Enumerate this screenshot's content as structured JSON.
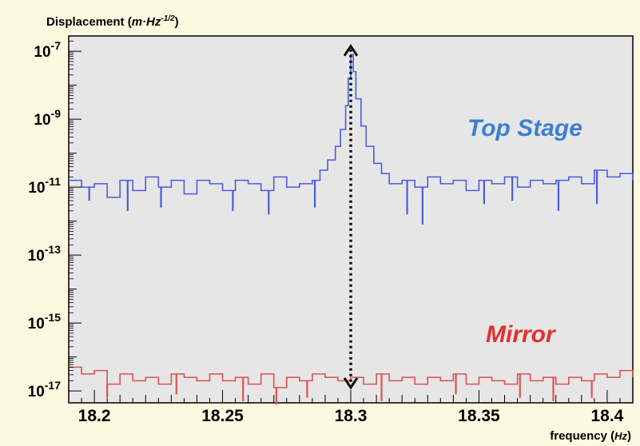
{
  "chart_data": {
    "type": "line",
    "ylabel_main": "Displacement (",
    "ylabel_unit": "m·Hz",
    "ylabel_exp": "-1/2",
    "ylabel_close": ")",
    "xlabel_main": "frequency (",
    "xlabel_unit": "Hz",
    "xlabel_close": ")",
    "xlim": [
      18.19,
      18.41
    ],
    "yscale": "log",
    "ylim_exponent": [
      -17.35,
      -6.55
    ],
    "x_ticks": [
      {
        "value": 18.2,
        "label": "18.2"
      },
      {
        "value": 18.25,
        "label": "18.25"
      },
      {
        "value": 18.3,
        "label": "18.3"
      },
      {
        "value": 18.35,
        "label": "18.35"
      },
      {
        "value": 18.4,
        "label": "18.4"
      }
    ],
    "y_ticks": [
      {
        "exp": -7,
        "base": "10",
        "sup": "-7"
      },
      {
        "exp": -9,
        "base": "10",
        "sup": "-9"
      },
      {
        "exp": -11,
        "base": "10",
        "sup": "-11"
      },
      {
        "exp": -13,
        "base": "10",
        "sup": "-13"
      },
      {
        "exp": -15,
        "base": "10",
        "sup": "-15"
      },
      {
        "exp": -17,
        "base": "10",
        "sup": "-17"
      }
    ],
    "series": [
      {
        "name": "Top Stage",
        "color": "#4a5be0",
        "label_color": "#3d7fd0",
        "x": [
          18.19,
          18.195,
          18.2,
          18.205,
          18.21,
          18.215,
          18.22,
          18.225,
          18.23,
          18.235,
          18.24,
          18.245,
          18.25,
          18.255,
          18.26,
          18.265,
          18.27,
          18.275,
          18.28,
          18.285,
          18.288,
          18.291,
          18.294,
          18.296,
          18.298,
          18.299,
          18.3,
          18.301,
          18.302,
          18.304,
          18.306,
          18.309,
          18.312,
          18.315,
          18.32,
          18.325,
          18.33,
          18.335,
          18.34,
          18.345,
          18.35,
          18.355,
          18.36,
          18.365,
          18.37,
          18.375,
          18.38,
          18.385,
          18.39,
          18.395,
          18.4,
          18.405,
          18.41
        ],
        "y_exp": [
          -10.8,
          -11.0,
          -10.9,
          -11.3,
          -10.8,
          -11.1,
          -10.7,
          -11.0,
          -10.8,
          -11.2,
          -10.8,
          -10.9,
          -11.1,
          -10.8,
          -10.9,
          -11.1,
          -10.7,
          -11.0,
          -10.9,
          -10.8,
          -10.5,
          -10.2,
          -9.8,
          -9.3,
          -8.6,
          -7.8,
          -7.1,
          -7.6,
          -8.4,
          -9.2,
          -9.8,
          -10.3,
          -10.6,
          -10.9,
          -10.8,
          -11.0,
          -10.7,
          -10.9,
          -10.8,
          -11.1,
          -10.8,
          -10.9,
          -10.7,
          -11.0,
          -10.8,
          -10.9,
          -10.8,
          -10.7,
          -10.9,
          -10.5,
          -10.7,
          -10.6,
          -10.8
        ],
        "dips_x": [
          18.198,
          18.213,
          18.226,
          18.254,
          18.268,
          18.286,
          18.322,
          18.328,
          18.352,
          18.363,
          18.381,
          18.396
        ],
        "dips_y_exp": [
          -11.4,
          -11.7,
          -11.6,
          -11.7,
          -11.8,
          -11.6,
          -11.8,
          -12.1,
          -11.5,
          -11.4,
          -11.7,
          -11.5
        ]
      },
      {
        "name": "Mirror",
        "color": "#e05050",
        "label_color": "#e52e2e",
        "x": [
          18.19,
          18.195,
          18.2,
          18.205,
          18.21,
          18.215,
          18.22,
          18.225,
          18.23,
          18.235,
          18.24,
          18.245,
          18.25,
          18.255,
          18.26,
          18.265,
          18.27,
          18.275,
          18.28,
          18.285,
          18.29,
          18.295,
          18.3,
          18.305,
          18.31,
          18.315,
          18.32,
          18.325,
          18.33,
          18.335,
          18.34,
          18.345,
          18.35,
          18.355,
          18.36,
          18.365,
          18.37,
          18.375,
          18.38,
          18.385,
          18.39,
          18.395,
          18.4,
          18.405,
          18.41
        ],
        "y_exp": [
          -16.3,
          -16.5,
          -16.4,
          -16.8,
          -16.5,
          -16.7,
          -16.6,
          -16.8,
          -16.5,
          -16.6,
          -16.7,
          -16.5,
          -16.7,
          -16.6,
          -16.8,
          -16.5,
          -16.9,
          -16.6,
          -16.7,
          -16.5,
          -16.6,
          -16.7,
          -16.6,
          -16.8,
          -16.5,
          -16.7,
          -16.6,
          -16.8,
          -16.6,
          -16.7,
          -16.5,
          -16.8,
          -16.6,
          -16.7,
          -16.8,
          -16.5,
          -16.7,
          -16.6,
          -16.8,
          -16.6,
          -16.7,
          -16.5,
          -16.6,
          -16.4,
          -16.6
        ],
        "dips_x": [
          18.205,
          18.232,
          18.258,
          18.271,
          18.283,
          18.312,
          18.341,
          18.366,
          18.379,
          18.394
        ],
        "dips_y_exp": [
          -17.2,
          -17.1,
          -17.3,
          -17.4,
          -17.2,
          -17.3,
          -17.1,
          -17.2,
          -17.3,
          -17.2
        ]
      }
    ],
    "arrow": {
      "x": 18.3,
      "from_exp": -16.9,
      "to_exp": -6.85
    }
  },
  "annotations": {
    "top_stage": "Top Stage",
    "mirror": "Mirror"
  }
}
